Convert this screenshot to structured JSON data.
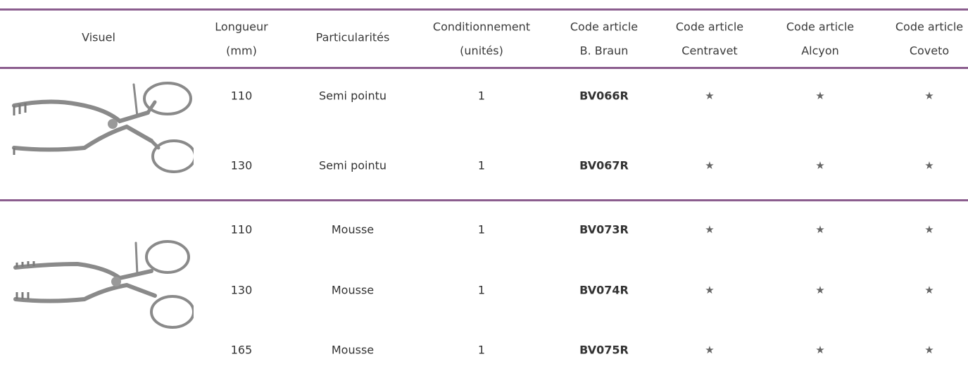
{
  "header": {
    "columns": [
      [
        "Visuel"
      ],
      [
        "Longueur",
        "(mm)"
      ],
      [
        "Particularités"
      ],
      [
        "Conditionnement",
        "(unités)"
      ],
      [
        "Code article",
        "B. Braun"
      ],
      [
        "Code article",
        "Centravet"
      ],
      [
        "Code article",
        "Alcyon"
      ],
      [
        "Code article",
        "Coveto"
      ]
    ]
  },
  "groups": [
    {
      "rows": [
        [
          110,
          "Semi pointu",
          1,
          "BV066R",
          "★",
          "★",
          "★"
        ],
        [
          130,
          "Semi pointu",
          1,
          "BV067R",
          "★",
          "★",
          "★"
        ]
      ]
    },
    {
      "rows": [
        [
          110,
          "Mousse",
          1,
          "BV073R",
          "★",
          "★",
          "★"
        ],
        [
          130,
          "Mousse",
          1,
          "BV074R",
          "★",
          "★",
          "★"
        ],
        [
          165,
          "Mousse",
          1,
          "BV075R",
          "★",
          "★",
          "★"
        ]
      ]
    }
  ]
}
